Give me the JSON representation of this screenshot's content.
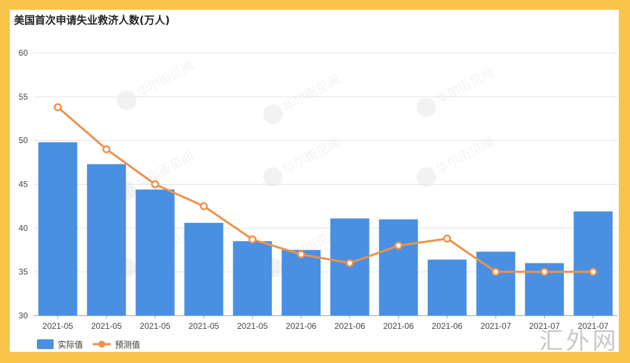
{
  "chart_data": {
    "type": "bar",
    "title": "美国首次申请失业救济人数(万人)",
    "categories": [
      "2021-05",
      "2021-05",
      "2021-05",
      "2021-05",
      "2021-05",
      "2021-06",
      "2021-06",
      "2021-06",
      "2021-06",
      "2021-07",
      "2021-07",
      "2021-07"
    ],
    "series": [
      {
        "name": "实际值",
        "type": "bar",
        "color": "#4a90e2",
        "values": [
          49.8,
          47.3,
          44.4,
          40.6,
          38.5,
          37.5,
          41.1,
          41.0,
          36.4,
          37.3,
          36.0,
          41.9
        ]
      },
      {
        "name": "预测值",
        "type": "line",
        "color": "#f0914a",
        "values": [
          53.8,
          49.0,
          45.0,
          42.5,
          38.7,
          37.0,
          36.0,
          38.0,
          38.8,
          35.0,
          35.0,
          35.0
        ]
      }
    ],
    "ylim": [
      30,
      60
    ],
    "yticks": [
      30,
      35,
      40,
      45,
      50,
      55,
      60
    ],
    "xlabel": "",
    "ylabel": "",
    "grid": true,
    "legend": "bottom-left"
  },
  "watermark": "华尔街见闻",
  "site_mark": "汇外网"
}
